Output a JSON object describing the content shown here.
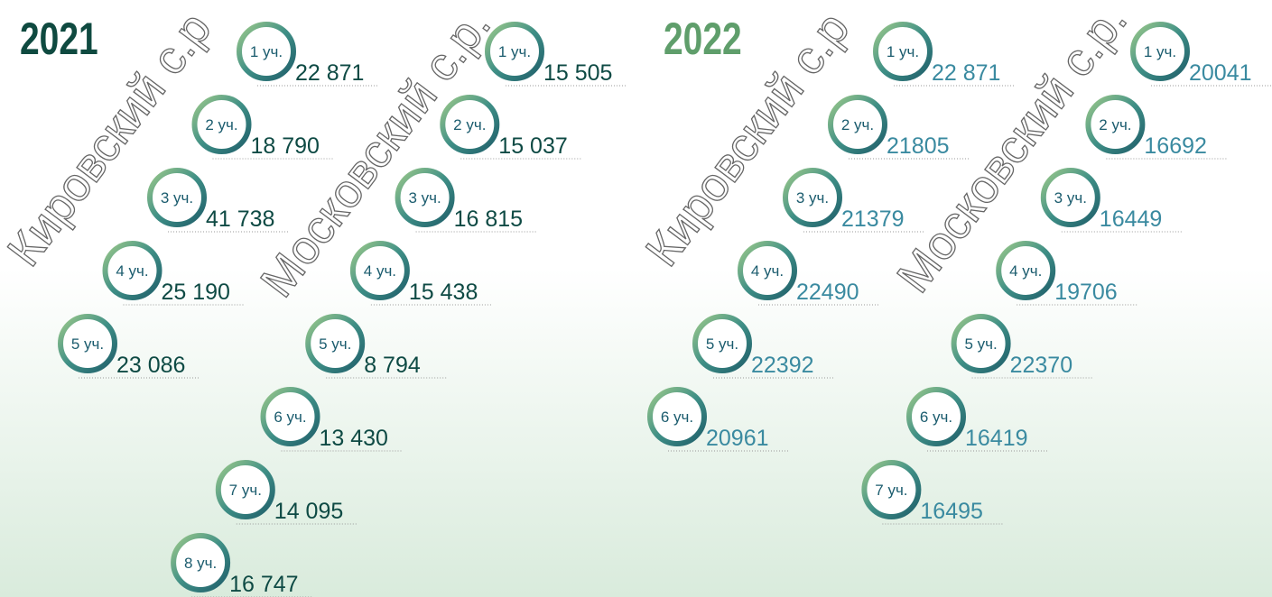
{
  "years": [
    {
      "year": "2021",
      "districts": [
        {
          "name": "Кировский с.р",
          "items": [
            {
              "label": "1 уч.",
              "value": "22 871"
            },
            {
              "label": "2 уч.",
              "value": "18 790"
            },
            {
              "label": "3 уч.",
              "value": "41 738"
            },
            {
              "label": "4 уч.",
              "value": "25 190"
            },
            {
              "label": "5 уч.",
              "value": "23 086"
            }
          ]
        },
        {
          "name": "Московский с.р.",
          "items": [
            {
              "label": "1 уч.",
              "value": "15 505"
            },
            {
              "label": "2 уч.",
              "value": "15 037"
            },
            {
              "label": "3 уч.",
              "value": "16 815"
            },
            {
              "label": "4 уч.",
              "value": "15 438"
            },
            {
              "label": "5 уч.",
              "value": "8 794"
            },
            {
              "label": "6 уч.",
              "value": "13 430"
            },
            {
              "label": "7 уч.",
              "value": "14 095"
            },
            {
              "label": "8 уч.",
              "value": "16 747"
            }
          ]
        }
      ]
    },
    {
      "year": "2022",
      "districts": [
        {
          "name": "Кировский с.р",
          "items": [
            {
              "label": "1 уч.",
              "value": "22 871"
            },
            {
              "label": "2 уч.",
              "value": "21805"
            },
            {
              "label": "3 уч.",
              "value": "21379"
            },
            {
              "label": "4 уч.",
              "value": "22490"
            },
            {
              "label": "5 уч.",
              "value": "22392"
            },
            {
              "label": "6 уч.",
              "value": "20961"
            }
          ]
        },
        {
          "name": "Московский с.р.",
          "items": [
            {
              "label": "1 уч.",
              "value": "20041"
            },
            {
              "label": "2 уч.",
              "value": "16692"
            },
            {
              "label": "3 уч.",
              "value": "16449"
            },
            {
              "label": "4 уч.",
              "value": "19706"
            },
            {
              "label": "5 уч.",
              "value": "22370"
            },
            {
              "label": "6 уч.",
              "value": "16419"
            },
            {
              "label": "7 уч.",
              "value": "16495"
            }
          ]
        }
      ]
    }
  ]
}
